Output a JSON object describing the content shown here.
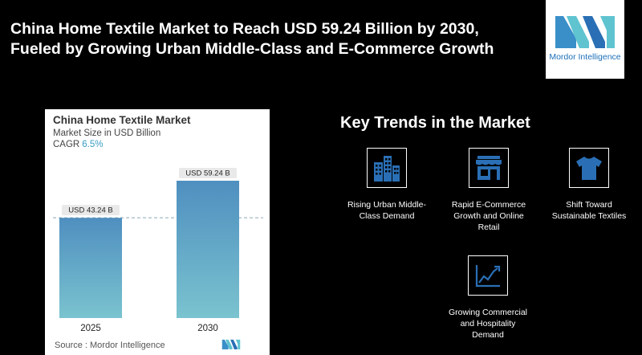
{
  "headline": {
    "line1": "China Home Textile Market to Reach USD 59.24 Billion by 2030,",
    "line2": "Fueled by Growing Urban Middle-Class and E-Commerce Growth"
  },
  "logo": {
    "text": "Mordor Intelligence"
  },
  "chart_card": {
    "title": "China Home Textile Market",
    "subtitle": "Market Size in USD Billion",
    "cagr_label": "CAGR",
    "cagr_value": "6.5%",
    "source": "Source :  Mordor Intelligence"
  },
  "chart_data": {
    "type": "bar",
    "title": "China Home Textile Market",
    "ylabel": "Market Size in USD Billion",
    "categories": [
      "2025",
      "2030"
    ],
    "values": [
      43.24,
      59.24
    ],
    "data_labels": [
      "USD 43.24 B",
      "USD 59.24 B"
    ],
    "ylim": [
      0,
      65
    ],
    "reference_line": 43.24,
    "grid": false,
    "colors": {
      "bar_top": "#4f8fc0",
      "bar_bottom": "#7ac3cf",
      "label_bg": "#e9e9e9"
    }
  },
  "trends": {
    "title": "Key Trends in the Market",
    "items": [
      {
        "icon": "buildings-icon",
        "label_lines": [
          "Rising Urban Middle-",
          "Class Demand"
        ]
      },
      {
        "icon": "storefront-icon",
        "label_lines": [
          "Rapid E-Commerce",
          "Growth and Online",
          "Retail"
        ]
      },
      {
        "icon": "tshirt-icon",
        "label_lines": [
          "Shift Toward",
          "Sustainable Textiles"
        ]
      },
      {
        "icon": "rising-chart-icon",
        "label_lines": [
          "Growing Commercial",
          "and Hospitality",
          "Demand"
        ]
      }
    ]
  }
}
